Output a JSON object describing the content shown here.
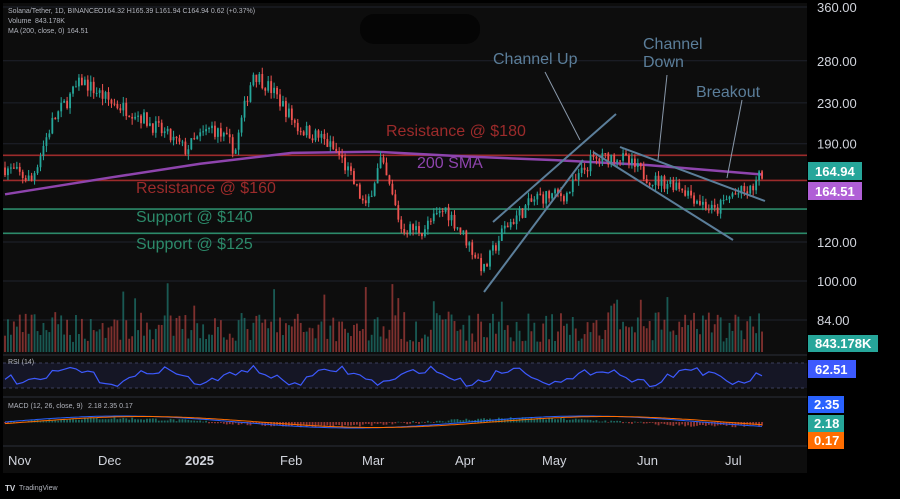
{
  "chart_data": {
    "type": "candlestick",
    "legend": {
      "symbol_line": "Solana/Tether, 1D, BINANCE",
      "ohlc_line": "O164.32 H165.39 L161.94 C164.94 0.62 (+0.37%)",
      "volume_line": "Volume",
      "volume_value": "843.178K",
      "ma_line": "MA (200, close, 0)",
      "ma_value": "164.51"
    },
    "y_axis": {
      "scale": "log",
      "ylim": [
        80,
        360
      ],
      "ticks": [
        "360.00",
        "280.00",
        "230.00",
        "190.00",
        "120.00",
        "100.00",
        "84.00"
      ]
    },
    "x_axis": {
      "labels": [
        "Nov",
        "Dec",
        "2025",
        "Feb",
        "Mar",
        "Apr",
        "May",
        "Jun",
        "Jul"
      ]
    },
    "price_path": [
      [
        "2024-10-27",
        170
      ],
      [
        "2024-11-05",
        160
      ],
      [
        "2024-11-12",
        210
      ],
      [
        "2024-11-22",
        255
      ],
      [
        "2024-12-02",
        230
      ],
      [
        "2024-12-10",
        220
      ],
      [
        "2024-12-17",
        205
      ],
      [
        "2024-12-27",
        185
      ],
      [
        "2025-01-05",
        205
      ],
      [
        "2025-01-13",
        185
      ],
      [
        "2025-01-19",
        265
      ],
      [
        "2025-01-25",
        245
      ],
      [
        "2025-02-03",
        205
      ],
      [
        "2025-02-11",
        195
      ],
      [
        "2025-02-17",
        180
      ],
      [
        "2025-02-26",
        140
      ],
      [
        "2025-03-03",
        175
      ],
      [
        "2025-03-10",
        128
      ],
      [
        "2025-03-17",
        127
      ],
      [
        "2025-03-25",
        140
      ],
      [
        "2025-04-07",
        105
      ],
      [
        "2025-04-14",
        128
      ],
      [
        "2025-04-25",
        148
      ],
      [
        "2025-05-05",
        150
      ],
      [
        "2025-05-13",
        175
      ],
      [
        "2025-05-22",
        180
      ],
      [
        "2025-06-03",
        160
      ],
      [
        "2025-06-11",
        158
      ],
      [
        "2025-06-19",
        145
      ],
      [
        "2025-06-24",
        138
      ],
      [
        "2025-06-30",
        150
      ],
      [
        "2025-07-06",
        152
      ],
      [
        "2025-07-10",
        165
      ]
    ],
    "ma200_path": [
      [
        "2024-10-27",
        150
      ],
      [
        "2024-12-01",
        162
      ],
      [
        "2025-01-01",
        173
      ],
      [
        "2025-02-01",
        182
      ],
      [
        "2025-03-01",
        183
      ],
      [
        "2025-04-01",
        179
      ],
      [
        "2025-05-01",
        176
      ],
      [
        "2025-06-01",
        172
      ],
      [
        "2025-07-10",
        164.5
      ]
    ],
    "levels": [
      {
        "label": "Resistance @ $180",
        "value": 180,
        "color": "#9c2b2b"
      },
      {
        "label": "Resistance @ $160",
        "value": 160,
        "color": "#9c2b2b"
      },
      {
        "label": "Support @ $140",
        "value": 140,
        "color": "#2c8a6a"
      },
      {
        "label": "Support @ $125",
        "value": 125,
        "color": "#2c8a6a"
      }
    ],
    "annotations": [
      {
        "label": "Channel Up"
      },
      {
        "label": "Channel Down"
      },
      {
        "label": "Breakout"
      },
      {
        "label": "200 SMA"
      }
    ],
    "price_tags": [
      {
        "value": "164.94",
        "bg": "#26a69a"
      },
      {
        "value": "164.51",
        "bg": "#b05fd6"
      }
    ],
    "volume_tag": {
      "value": "843.178K",
      "bg": "#26a69a"
    },
    "rsi": {
      "label": "RSI (14)",
      "value": "62.51",
      "color": "#3d5afe"
    },
    "macd": {
      "label": "MACD (12, 26, close, 9)",
      "values_text": "2.18  2.35  0.17",
      "tags": [
        {
          "value": "2.35",
          "bg": "#2962ff"
        },
        {
          "value": "2.18",
          "bg": "#26a69a"
        },
        {
          "value": "0.17",
          "bg": "#ff6d00"
        }
      ]
    },
    "colors": {
      "up": "#26a69a",
      "down": "#ef5350",
      "ma": "#8e44ad",
      "grid": "#1e222d",
      "trend": "#5b7e9a"
    }
  },
  "footer": {
    "brand": "TradingView"
  }
}
